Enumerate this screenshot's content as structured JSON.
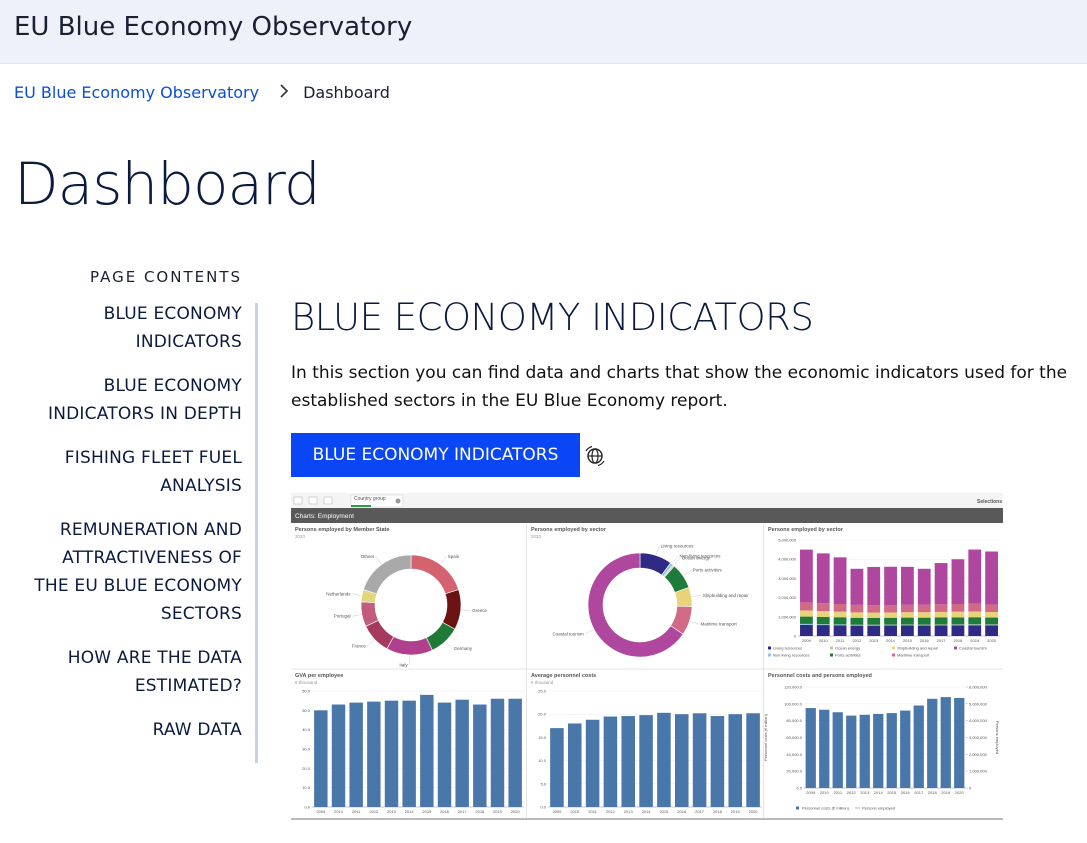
{
  "header": {
    "title": "EU Blue Economy Observatory"
  },
  "breadcrumb": {
    "link": "EU Blue Economy Observatory",
    "current": "Dashboard"
  },
  "page_title": "Dashboard",
  "page_contents": {
    "heading": "PAGE CONTENTS",
    "items": [
      "BLUE ECONOMY INDICATORS",
      "BLUE ECONOMY INDICATORS IN DEPTH",
      "FISHING FLEET FUEL ANALYSIS",
      "REMUNERATION AND ATTRACTIVENESS OF THE EU BLUE ECONOMY SECTORS",
      "HOW ARE THE DATA ESTIMATED?",
      "RAW DATA"
    ]
  },
  "section": {
    "title": "BLUE ECONOMY INDICATORS",
    "text": "In this section you can find data and charts that show the economic indicators used for the established sectors in the EU Blue Economy report.",
    "button": "BLUE ECONOMY INDICATORS"
  },
  "dashboard": {
    "toolbar": {
      "filter": "Country group",
      "selections": "Selections"
    },
    "sheet_title": "Charts: Employment"
  },
  "chart_data": [
    {
      "type": "pie",
      "title": "Persons employed by Member State",
      "subtitle": "2020",
      "categories": [
        "Spain",
        "Greece",
        "Germany",
        "Italy",
        "France",
        "Portugal",
        "Netherlands",
        "Others"
      ],
      "values": [
        20,
        13,
        10,
        15,
        10,
        8,
        4,
        20
      ],
      "colors": [
        "#d4626f",
        "#6b1212",
        "#1f7a36",
        "#b0408e",
        "#a63a5e",
        "#c25c7c",
        "#e4d67c",
        "#a9a9a9"
      ]
    },
    {
      "type": "pie",
      "title": "Persons employed by sector",
      "subtitle": "2020",
      "categories": [
        "Living resources",
        "Non-living resources",
        "Ocean energy",
        "Ports activities",
        "Shipbuilding and repair",
        "Maritime transport",
        "Coastal tourism"
      ],
      "values": [
        10,
        1,
        0.5,
        8,
        6,
        9,
        65.5
      ],
      "colors": [
        "#2f2a84",
        "#8ac6e0",
        "#c9c59a",
        "#1e7b3a",
        "#e8d27a",
        "#d06a86",
        "#b0479e"
      ]
    },
    {
      "type": "bar",
      "stacked": true,
      "title": "Persons employed by sector",
      "categories": [
        "2009",
        "2010",
        "2011",
        "2012",
        "2013",
        "2014",
        "2015",
        "2016",
        "2017",
        "2018",
        "2019",
        "2020"
      ],
      "ylim": [
        0,
        5000000
      ],
      "yticks": [
        {
          "value": 0,
          "label": "0"
        },
        {
          "value": 1000000,
          "label": "1,000,000"
        },
        {
          "value": 2000000,
          "label": "2,000,000"
        },
        {
          "value": 3000000,
          "label": "3,000,000"
        },
        {
          "value": 4000000,
          "label": "4,000,000"
        },
        {
          "value": 5000000,
          "label": "5,000,000"
        }
      ],
      "series": [
        {
          "name": "Living resources",
          "color": "#2f2a84",
          "values": [
            580000,
            570000,
            560000,
            540000,
            540000,
            545000,
            550000,
            545000,
            550000,
            555000,
            560000,
            555000
          ]
        },
        {
          "name": "Non-living resources",
          "color": "#8ac6e0",
          "values": [
            45000,
            42000,
            40000,
            38000,
            37000,
            36000,
            35000,
            34000,
            33000,
            32000,
            31000,
            30000
          ]
        },
        {
          "name": "Ocean energy",
          "color": "#c9c59a",
          "values": [
            5000,
            6000,
            7000,
            8000,
            9000,
            10000,
            11000,
            12000,
            13000,
            14000,
            15000,
            16000
          ]
        },
        {
          "name": "Ports activities",
          "color": "#1e7b3a",
          "values": [
            380000,
            375000,
            370000,
            365000,
            360000,
            360000,
            362000,
            365000,
            368000,
            370000,
            372000,
            360000
          ]
        },
        {
          "name": "Shipbuilding and repair",
          "color": "#e8d27a",
          "values": [
            320000,
            300000,
            290000,
            280000,
            275000,
            275000,
            280000,
            285000,
            290000,
            295000,
            300000,
            290000
          ]
        },
        {
          "name": "Maritime transport",
          "color": "#d06a86",
          "values": [
            420000,
            410000,
            400000,
            390000,
            385000,
            380000,
            385000,
            390000,
            395000,
            400000,
            405000,
            380000
          ]
        },
        {
          "name": "Coastal tourism",
          "color": "#b0479e",
          "values": [
            2750000,
            2600000,
            2430000,
            1880000,
            1990000,
            2000000,
            1980000,
            1870000,
            2150000,
            2330000,
            2820000,
            2770000
          ]
        }
      ]
    },
    {
      "type": "bar",
      "title": "GVA per employee",
      "subtitle": "€ thousand",
      "categories": [
        "2009",
        "2010",
        "2011",
        "2012",
        "2013",
        "2014",
        "2015",
        "2016",
        "2017",
        "2018",
        "2019",
        "2020"
      ],
      "values": [
        50,
        53,
        54,
        54.5,
        55,
        55,
        58,
        54,
        55.5,
        53,
        56,
        56
      ],
      "color": "#4a77aa",
      "ylim": [
        0,
        60
      ],
      "yticks": [
        {
          "value": 0,
          "label": "0.0"
        },
        {
          "value": 10,
          "label": "10.0"
        },
        {
          "value": 20,
          "label": "20.0"
        },
        {
          "value": 30,
          "label": "30.0"
        },
        {
          "value": 40,
          "label": "40.0"
        },
        {
          "value": 50,
          "label": "50.0"
        },
        {
          "value": 60,
          "label": "60.0"
        }
      ]
    },
    {
      "type": "bar",
      "title": "Average personnel costs",
      "subtitle": "€ thousand",
      "categories": [
        "2009",
        "2010",
        "2011",
        "2012",
        "2013",
        "2014",
        "2015",
        "2016",
        "2017",
        "2018",
        "2019",
        "2020"
      ],
      "values": [
        17,
        18,
        18.8,
        19.5,
        19.6,
        19.8,
        20.3,
        20,
        20.2,
        19.6,
        20,
        20.2
      ],
      "color": "#4a77aa",
      "ylim": [
        0,
        25
      ],
      "yticks": [
        {
          "value": 0,
          "label": "0.0"
        },
        {
          "value": 5,
          "label": "5.0"
        },
        {
          "value": 10,
          "label": "10.0"
        },
        {
          "value": 15,
          "label": "15.0"
        },
        {
          "value": 20,
          "label": "20.0"
        },
        {
          "value": 25,
          "label": "25.0"
        }
      ]
    },
    {
      "type": "combo",
      "title": "Personnel costs and persons employed",
      "ylabel": "Personnel costs (€ million)",
      "y2label": "Persons employed",
      "categories": [
        "2009",
        "2010",
        "2011",
        "2012",
        "2013",
        "2014",
        "2015",
        "2016",
        "2017",
        "2018",
        "2019",
        "2020"
      ],
      "ylim": [
        0,
        120000
      ],
      "yticks": [
        {
          "value": 0,
          "label": "0.0"
        },
        {
          "value": 20000,
          "label": "20,000.0"
        },
        {
          "value": 40000,
          "label": "40,000.0"
        },
        {
          "value": 60000,
          "label": "60,000.0"
        },
        {
          "value": 80000,
          "label": "80,000.0"
        },
        {
          "value": 100000,
          "label": "100,000.0"
        },
        {
          "value": 120000,
          "label": "120,000.0"
        }
      ],
      "y2lim": [
        0,
        6000000
      ],
      "y2ticks": [
        0,
        {
          "value": 1000000,
          "label": "1,000,000"
        },
        {
          "value": 2000000,
          "label": "2,000,000"
        },
        {
          "value": 3000000,
          "label": "3,000,000"
        },
        {
          "value": 4000000,
          "label": "4,000,000"
        },
        {
          "value": 5000000,
          "label": "5,000,000"
        },
        {
          "value": 6000000,
          "label": "6,000,000"
        }
      ],
      "series": [
        {
          "name": "Personnel costs (€ million)",
          "type": "bar",
          "color": "#4a77aa",
          "values": [
            95000,
            93000,
            90000,
            86000,
            87000,
            88000,
            89000,
            92000,
            98000,
            106000,
            108000,
            107000
          ]
        },
        {
          "name": "Persons employed",
          "type": "line",
          "axis": "y2",
          "color": "#d98aa0",
          "values": [
            4500000,
            4300000,
            4100000,
            3500000,
            3600000,
            3600000,
            3600000,
            3500000,
            3800000,
            4000000,
            4500000,
            4400000
          ]
        }
      ]
    }
  ]
}
